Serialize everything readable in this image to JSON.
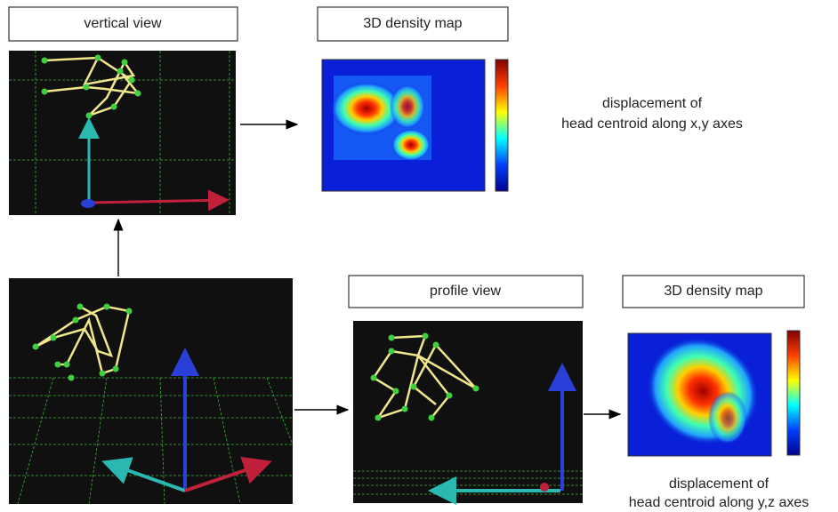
{
  "top": {
    "view_label": "vertical view",
    "map_label": "3D density map",
    "caption": [
      "displacement of",
      "head centroid along x,y axes"
    ]
  },
  "bottom": {
    "view_label": "profile view",
    "map_label": "3D density map",
    "caption": [
      "displacement of",
      "head centroid along y,z axes"
    ]
  }
}
